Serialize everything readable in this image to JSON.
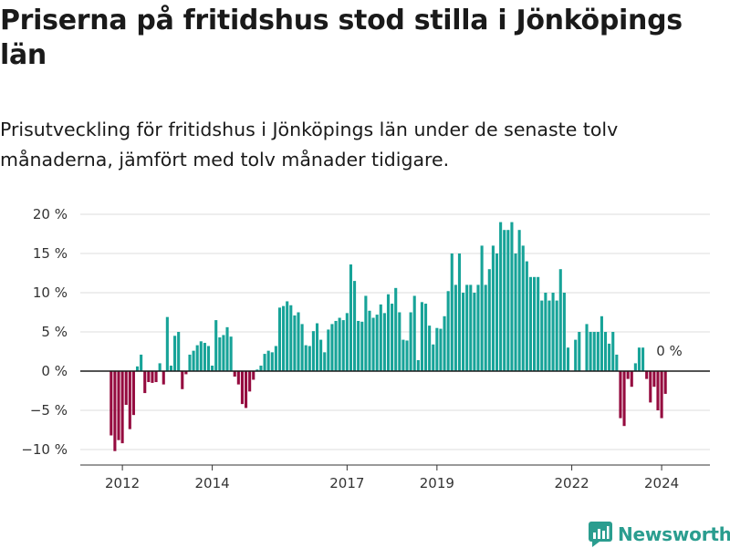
{
  "header": {
    "title": "Priserna på fritidshus stod stilla i Jönköpings län",
    "subtitle": "Prisutveckling för fritidshus i Jönköpings län under de senaste tolv månaderna, jämfört med tolv månader tidigare."
  },
  "brand": {
    "name": "Newsworthy",
    "icon": "newsworthy-logo-icon",
    "color": "#2a9d8f"
  },
  "chart_data": {
    "type": "bar",
    "title": "",
    "xlabel": "",
    "ylabel": "",
    "unit": "%",
    "ylim": [
      -12,
      20
    ],
    "y_ticks": [
      20,
      15,
      10,
      5,
      0,
      -5,
      -10
    ],
    "y_tick_labels": [
      "20 %",
      "15 %",
      "10 %",
      "5 %",
      "0 %",
      "−5 %",
      "−10 %"
    ],
    "x_ticks": [
      2012,
      2014,
      2017,
      2019,
      2022,
      2024
    ],
    "x_tick_labels": [
      "2012",
      "2014",
      "2017",
      "2019",
      "2022",
      "2024"
    ],
    "grid": true,
    "positive_color": "#17a398",
    "negative_color": "#950b3f",
    "annotation": {
      "label": "0 %",
      "value": 0
    },
    "start": "2011-10",
    "frequency": "monthly",
    "values": [
      -8.2,
      -10.2,
      -8.8,
      -9.2,
      -4.3,
      -7.4,
      -5.6,
      0.6,
      2.1,
      -2.8,
      -1.4,
      -1.5,
      -1.4,
      1.0,
      -1.7,
      6.9,
      0.7,
      4.5,
      5.0,
      -2.3,
      -0.4,
      2.1,
      2.6,
      3.3,
      3.8,
      3.6,
      3.2,
      0.7,
      6.5,
      4.3,
      4.6,
      5.6,
      4.4,
      -0.7,
      -1.7,
      -4.2,
      -4.7,
      -2.6,
      -1.1,
      0.2,
      0.7,
      2.2,
      2.6,
      2.4,
      3.2,
      8.1,
      8.3,
      8.9,
      8.4,
      7.1,
      7.5,
      6.0,
      3.3,
      3.2,
      5.1,
      6.1,
      4.0,
      2.4,
      5.3,
      6.0,
      6.4,
      6.8,
      6.5,
      7.4,
      13.6,
      11.5,
      6.4,
      6.3,
      9.6,
      7.7,
      6.8,
      7.2,
      8.5,
      7.4,
      9.8,
      8.6,
      10.6,
      7.5,
      4.0,
      3.9,
      7.5,
      9.6,
      1.4,
      8.8,
      8.6,
      5.8,
      3.4,
      5.5,
      5.4,
      7.0,
      10.2,
      15.0,
      11.0,
      15.0,
      10.0,
      11.0,
      11.0,
      10.0,
      11.0,
      16.0,
      11.0,
      13.0,
      16.0,
      15.0,
      19.0,
      18.0,
      18.0,
      19.0,
      15.0,
      18.0,
      16.0,
      14.0,
      12.0,
      12.0,
      12.0,
      9.0,
      10.0,
      9.0,
      10.0,
      9.0,
      13.0,
      10.0,
      3.0,
      0.0,
      4.0,
      5.0,
      0.0,
      6.0,
      5.0,
      5.0,
      5.0,
      7.0,
      5.0,
      3.5,
      5.0,
      2.1,
      -6.0,
      -7.0,
      -1.0,
      -2.0,
      1.0,
      3.0,
      3.0,
      -1.0,
      -4.0,
      -2.0,
      -5.0,
      -6.0,
      -2.9
    ]
  }
}
